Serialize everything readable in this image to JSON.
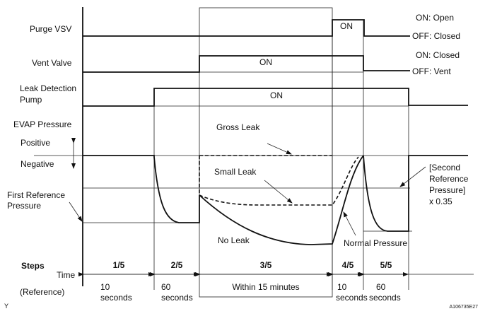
{
  "signals": {
    "purge_vsv": {
      "label": "Purge VSV",
      "on_label": "ON",
      "on_state": "ON: Open",
      "off_state": "OFF: Closed"
    },
    "vent_valve": {
      "label": "Vent Valve",
      "on_label": "ON",
      "on_state": "ON: Closed",
      "off_state": "OFF: Vent"
    },
    "pump": {
      "label_line1": "Leak Detection",
      "label_line2": "Pump",
      "on_label": "ON"
    }
  },
  "evap": {
    "label": "EVAP Pressure",
    "positive": "Positive",
    "negative": "Negative",
    "first_ref_line1": "First Reference",
    "first_ref_line2": "Pressure",
    "second_ref_line1": "[Second",
    "second_ref_line2": "Reference",
    "second_ref_line3": "Pressure]",
    "second_ref_line4": "x 0.35",
    "gross_leak": "Gross Leak",
    "small_leak": "Small Leak",
    "no_leak": "No Leak",
    "normal_pressure": "Normal Pressure"
  },
  "timeline": {
    "steps_label": "Steps",
    "time_label": "Time",
    "reference_label": "(Reference)",
    "steps": [
      {
        "step": "1/5",
        "time_line1": "10",
        "time_line2": "seconds"
      },
      {
        "step": "2/5",
        "time_line1": "60",
        "time_line2": "seconds"
      },
      {
        "step": "3/5",
        "time_line1": "Within 15 minutes",
        "time_line2": ""
      },
      {
        "step": "4/5",
        "time_line1": "10",
        "time_line2": "seconds"
      },
      {
        "step": "5/5",
        "time_line1": "60",
        "time_line2": "seconds"
      }
    ]
  },
  "footer": {
    "left_mark": "Y",
    "figure_id": "A106735E27"
  }
}
